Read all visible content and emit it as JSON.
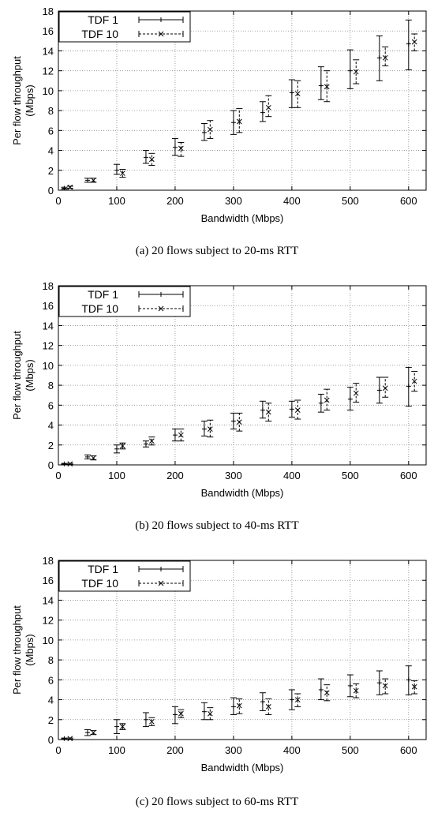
{
  "captions": [
    "(a)  20 flows subject to 20-ms RTT",
    "(b)  20 flows subject to 40-ms RTT",
    "(c)  20 flows subject to 60-ms RTT"
  ],
  "chart_data": [
    {
      "type": "scatter",
      "title": "",
      "xlabel": "Bandwidth (Mbps)",
      "ylabel": "Per flow throughput (Mbps)",
      "xlim": [
        0,
        630
      ],
      "ylim": [
        0,
        18
      ],
      "xticks": [
        0,
        100,
        200,
        300,
        400,
        500,
        600
      ],
      "yticks": [
        0,
        2,
        4,
        6,
        8,
        10,
        12,
        14,
        16,
        18
      ],
      "grid": true,
      "legend": "top-left",
      "series": [
        {
          "name": "TDF 1",
          "x": [
            10,
            50,
            100,
            150,
            200,
            250,
            300,
            350,
            400,
            450,
            500,
            550,
            600
          ],
          "y": [
            0.2,
            1.0,
            2.0,
            3.3,
            4.3,
            5.8,
            6.8,
            7.8,
            9.8,
            10.5,
            12.0,
            13.3,
            14.7
          ],
          "err_low": [
            0.1,
            0.8,
            1.6,
            2.7,
            3.5,
            5.0,
            5.6,
            6.9,
            8.3,
            9.1,
            10.2,
            11.0,
            12.1
          ],
          "err_high": [
            0.3,
            1.2,
            2.6,
            4.0,
            5.2,
            6.7,
            8.0,
            8.9,
            11.1,
            12.4,
            14.1,
            15.5,
            17.1
          ]
        },
        {
          "name": "TDF 10",
          "x": [
            20,
            60,
            110,
            160,
            210,
            260,
            310,
            360,
            410,
            460,
            510,
            560,
            610
          ],
          "y": [
            0.3,
            1.0,
            1.7,
            3.1,
            4.2,
            6.1,
            6.9,
            8.3,
            9.7,
            10.4,
            11.9,
            13.3,
            14.9
          ],
          "err_low": [
            0.2,
            0.8,
            1.3,
            2.5,
            3.4,
            5.2,
            5.8,
            7.4,
            8.3,
            8.9,
            10.7,
            12.5,
            14.0
          ],
          "err_high": [
            0.4,
            1.2,
            2.1,
            3.7,
            4.8,
            7.0,
            8.2,
            9.5,
            11.0,
            12.0,
            13.1,
            14.4,
            15.7
          ]
        }
      ]
    },
    {
      "type": "scatter",
      "title": "",
      "xlabel": "Bandwidth (Mbps)",
      "ylabel": "Per flow throughput (Mbps)",
      "xlim": [
        0,
        630
      ],
      "ylim": [
        0,
        18
      ],
      "xticks": [
        0,
        100,
        200,
        300,
        400,
        500,
        600
      ],
      "yticks": [
        0,
        2,
        4,
        6,
        8,
        10,
        12,
        14,
        16,
        18
      ],
      "grid": true,
      "legend": "top-left",
      "series": [
        {
          "name": "TDF 1",
          "x": [
            10,
            50,
            100,
            150,
            200,
            250,
            300,
            350,
            400,
            450,
            500,
            550,
            600
          ],
          "y": [
            0.1,
            0.8,
            1.6,
            2.1,
            3.0,
            3.6,
            4.4,
            5.5,
            5.6,
            6.2,
            6.6,
            7.5,
            7.9
          ],
          "err_low": [
            0.05,
            0.6,
            1.2,
            1.8,
            2.4,
            2.9,
            3.6,
            4.7,
            4.8,
            5.3,
            5.5,
            6.2,
            5.9
          ],
          "err_high": [
            0.15,
            1.0,
            2.0,
            2.4,
            3.6,
            4.4,
            5.2,
            6.4,
            6.4,
            7.1,
            7.8,
            8.8,
            9.8
          ]
        },
        {
          "name": "TDF 10",
          "x": [
            20,
            60,
            110,
            160,
            210,
            260,
            310,
            360,
            410,
            460,
            510,
            560,
            610
          ],
          "y": [
            0.1,
            0.7,
            1.9,
            2.4,
            3.0,
            3.6,
            4.3,
            5.3,
            5.5,
            6.5,
            7.2,
            7.7,
            8.4
          ],
          "err_low": [
            0.05,
            0.5,
            1.6,
            2.0,
            2.4,
            2.8,
            3.4,
            4.4,
            4.6,
            5.5,
            6.3,
            6.8,
            7.4
          ],
          "err_high": [
            0.15,
            0.9,
            2.2,
            2.8,
            3.6,
            4.5,
            5.2,
            6.2,
            6.5,
            7.6,
            8.2,
            8.8,
            9.4
          ]
        }
      ]
    },
    {
      "type": "scatter",
      "title": "",
      "xlabel": "Bandwidth (Mbps)",
      "ylabel": "Per flow throughput (Mbps)",
      "xlim": [
        0,
        630
      ],
      "ylim": [
        0,
        18
      ],
      "xticks": [
        0,
        100,
        200,
        300,
        400,
        500,
        600
      ],
      "yticks": [
        0,
        2,
        4,
        6,
        8,
        10,
        12,
        14,
        16,
        18
      ],
      "grid": true,
      "legend": "top-left",
      "series": [
        {
          "name": "TDF 1",
          "x": [
            10,
            50,
            100,
            150,
            200,
            250,
            300,
            350,
            400,
            450,
            500,
            550,
            600
          ],
          "y": [
            0.1,
            0.7,
            1.3,
            2.0,
            2.5,
            2.8,
            3.3,
            3.8,
            4.0,
            5.0,
            5.4,
            5.7,
            6.0
          ],
          "err_low": [
            0.05,
            0.4,
            0.6,
            1.3,
            1.6,
            2.0,
            2.5,
            2.9,
            3.0,
            4.0,
            4.3,
            4.5,
            4.5
          ],
          "err_high": [
            0.15,
            1.0,
            2.0,
            2.7,
            3.3,
            3.7,
            4.2,
            4.7,
            5.0,
            6.1,
            6.5,
            6.9,
            7.4
          ]
        },
        {
          "name": "TDF 10",
          "x": [
            20,
            60,
            110,
            160,
            210,
            260,
            310,
            360,
            410,
            460,
            510,
            560,
            610
          ],
          "y": [
            0.1,
            0.7,
            1.3,
            1.8,
            2.6,
            2.6,
            3.4,
            3.3,
            4.0,
            4.7,
            4.9,
            5.4,
            5.3
          ],
          "err_low": [
            0.05,
            0.5,
            1.0,
            1.4,
            2.2,
            2.0,
            2.6,
            2.5,
            3.3,
            3.9,
            4.2,
            4.6,
            4.6
          ],
          "err_high": [
            0.15,
            0.9,
            1.6,
            2.2,
            3.0,
            3.2,
            4.1,
            4.1,
            4.6,
            5.5,
            5.6,
            6.1,
            5.9
          ]
        }
      ]
    }
  ]
}
